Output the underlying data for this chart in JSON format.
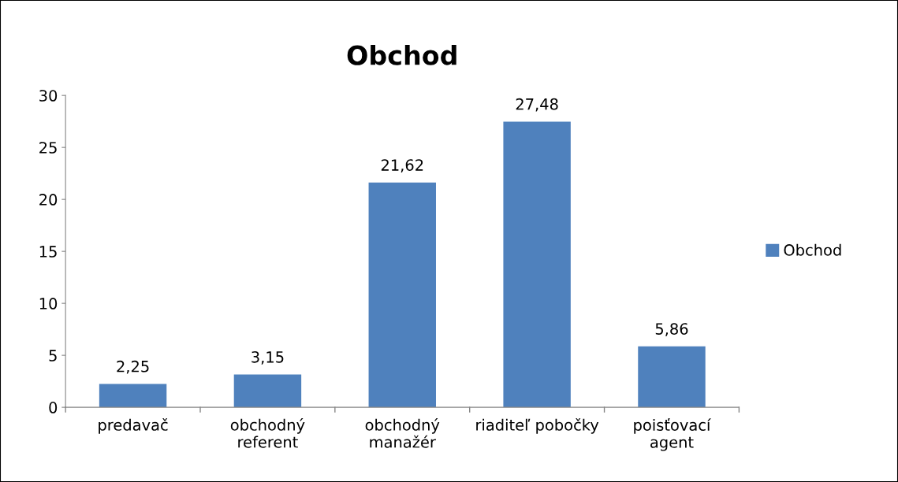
{
  "chart_data": {
    "type": "bar",
    "title": "Obchod",
    "categories": [
      "predavač",
      "obchodný\nreferent",
      "obchodný\nmanažér",
      "riaditeľ pobočky",
      "poisťovací\nagent"
    ],
    "series": [
      {
        "name": "Obchod",
        "color": "#4f81bd",
        "values": [
          2.25,
          3.15,
          21.62,
          27.48,
          5.86
        ],
        "value_labels": [
          "2,25",
          "3,15",
          "21,62",
          "27,48",
          "5,86"
        ]
      }
    ],
    "ylim": [
      0,
      30
    ],
    "yticks": [
      0,
      5,
      10,
      15,
      20,
      25,
      30
    ],
    "grid": false,
    "legend": "right"
  }
}
